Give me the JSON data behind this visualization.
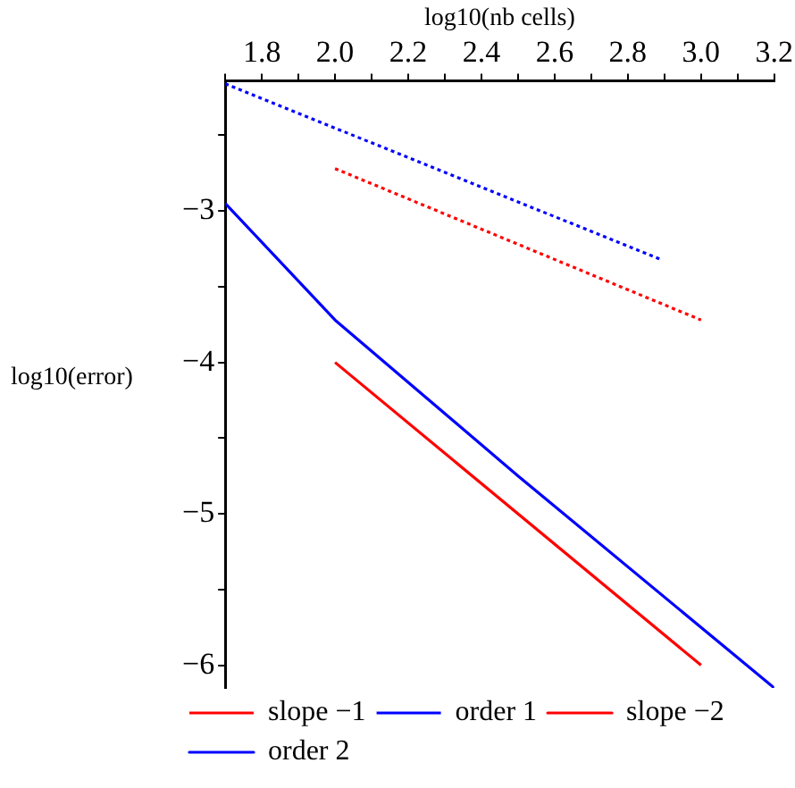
{
  "chart_data": {
    "type": "line",
    "xlabel": "log10(nb cells)",
    "ylabel": "log10(error)",
    "xlim": [
      1.7,
      3.2
    ],
    "ylim": [
      -6.15,
      -2.14
    ],
    "xticks": [
      {
        "value": 1.7,
        "label": null
      },
      1.8,
      {
        "value": 1.9,
        "label": null
      },
      {
        "value": 2,
        "label": "2.0"
      },
      {
        "value": 2.1,
        "label": null
      },
      2.2,
      {
        "value": 2.3,
        "label": null
      },
      2.4,
      {
        "value": 2.5,
        "label": null
      },
      2.6,
      {
        "value": 2.7,
        "label": null
      },
      2.8,
      {
        "value": 2.9,
        "label": null
      },
      {
        "value": 3,
        "label": "3.0"
      },
      {
        "value": 3.1,
        "label": null
      },
      3.2
    ],
    "yticks": [
      {
        "value": -2.5,
        "label": null
      },
      -3,
      {
        "value": -3.5,
        "label": null
      },
      -4,
      {
        "value": -4.5,
        "label": null
      },
      -5,
      {
        "value": -5.5,
        "label": null
      },
      -6
    ],
    "grid": false,
    "legend": "bottom",
    "marker": "none",
    "series": [
      {
        "name": "slope −1",
        "color": "#ff0000",
        "line_style": "dotted",
        "x": [
          2.0,
          3.0
        ],
        "values": [
          -2.72,
          -3.72
        ]
      },
      {
        "name": "order 1",
        "color": "#0000ff",
        "line_style": "dotted",
        "x": [
          1.7,
          2.89
        ],
        "values": [
          -2.16,
          -3.32
        ]
      },
      {
        "name": "slope −2",
        "color": "#ff0000",
        "line_style": "solid",
        "x": [
          2.0,
          3.0
        ],
        "values": [
          -4.0,
          -6.0
        ]
      },
      {
        "name": "order 2",
        "color": "#0000ff",
        "line_style": "solid",
        "x": [
          1.7,
          2.0,
          2.5,
          3.2
        ],
        "values": [
          -2.95,
          -3.72,
          -4.75,
          -6.15
        ]
      }
    ]
  }
}
